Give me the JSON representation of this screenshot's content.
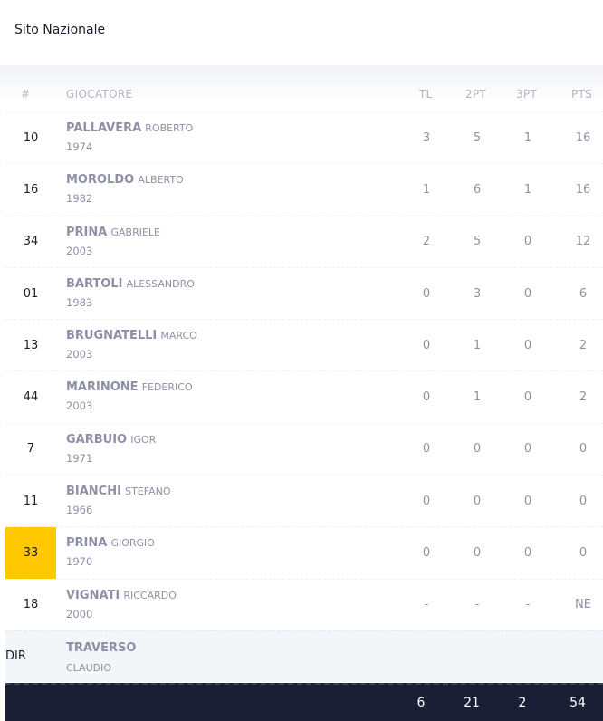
{
  "header": {
    "title": "Sito Nazionale"
  },
  "columns": {
    "num": "#",
    "player": "GIOCATORE",
    "tl": "TL",
    "pt2": "2PT",
    "pt3": "3PT",
    "pts": "PTS"
  },
  "players": [
    {
      "num": "10",
      "surname": "PALLAVERA",
      "first": "ROBERTO",
      "year": "1974",
      "tl": "3",
      "pt2": "5",
      "pt3": "1",
      "pts": "16"
    },
    {
      "num": "16",
      "surname": "MOROLDO",
      "first": "ALBERTO",
      "year": "1982",
      "tl": "1",
      "pt2": "6",
      "pt3": "1",
      "pts": "16"
    },
    {
      "num": "34",
      "surname": "PRINA",
      "first": "GABRIELE",
      "year": "2003",
      "tl": "2",
      "pt2": "5",
      "pt3": "0",
      "pts": "12"
    },
    {
      "num": "01",
      "surname": "BARTOLI",
      "first": "ALESSANDRO",
      "year": "1983",
      "tl": "0",
      "pt2": "3",
      "pt3": "0",
      "pts": "6"
    },
    {
      "num": "13",
      "surname": "BRUGNATELLI",
      "first": "MARCO",
      "year": "2003",
      "tl": "0",
      "pt2": "1",
      "pt3": "0",
      "pts": "2"
    },
    {
      "num": "44",
      "surname": "MARINONE",
      "first": "FEDERICO",
      "year": "2003",
      "tl": "0",
      "pt2": "1",
      "pt3": "0",
      "pts": "2"
    },
    {
      "num": "7",
      "surname": "GARBUIO",
      "first": "IGOR",
      "year": "1971",
      "tl": "0",
      "pt2": "0",
      "pt3": "0",
      "pts": "0"
    },
    {
      "num": "11",
      "surname": "BIANCHI",
      "first": "STEFANO",
      "year": "1966",
      "tl": "0",
      "pt2": "0",
      "pt3": "0",
      "pts": "0"
    },
    {
      "num": "33",
      "surname": "PRINA",
      "first": "GIORGIO",
      "year": "1970",
      "tl": "0",
      "pt2": "0",
      "pt3": "0",
      "pts": "0"
    },
    {
      "num": "18",
      "surname": "VIGNATI",
      "first": "RICCARDO",
      "year": "2000",
      "tl": "-",
      "pt2": "-",
      "pt3": "-",
      "pts": "NE"
    }
  ],
  "director": {
    "label": "DIR",
    "surname": "TRAVERSO",
    "first": "CLAUDIO"
  },
  "totals": {
    "tl": "6",
    "pt2": "21",
    "pt3": "2",
    "pts": "54"
  },
  "colors": {
    "highlight": "#ffc800",
    "footer": "#1b1f36"
  }
}
